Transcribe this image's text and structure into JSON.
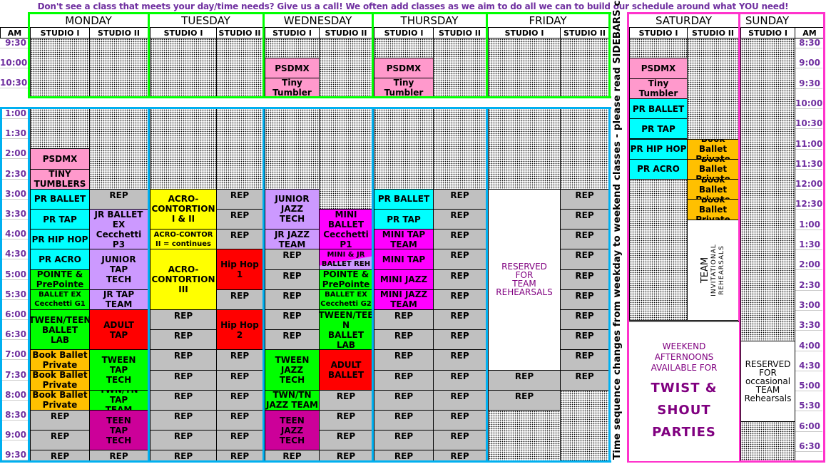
{
  "banner": "Don't see a class that meets your day/time needs? Give us a call! We often add classes as we aim to do all we can to build our schedule around what YOU need!",
  "sidebar_note": "Time sequence changes from weekday to weekend classes - please read SIDEBARS careful",
  "am_label": "AM",
  "colors": {
    "pink": "#ff99cc",
    "cyan": "#00ffff",
    "green": "#00ff00",
    "lavender": "#cc99ff",
    "yellow": "#ffff00",
    "red": "#ff0000",
    "orange": "#ffc000",
    "magenta": "#ff00ff",
    "purple": "#cc0099",
    "gray": "#c0c0c0",
    "white": "#ffffff",
    "weekday_am_frame": "#00ff00",
    "weekday_pm_frame": "#00b0f0",
    "weekend_frame": "#ff33cc",
    "time_text": "#7030a0",
    "reserved_text": "#800080"
  },
  "days": [
    {
      "name": "MONDAY",
      "studios": [
        "STUDIO I",
        "STUDIO II"
      ]
    },
    {
      "name": "TUESDAY",
      "studios": [
        "STUDIO I",
        "STUDIO II"
      ]
    },
    {
      "name": "WEDNESDAY",
      "studios": [
        "STUDIO I",
        "STUDIO II"
      ]
    },
    {
      "name": "THURSDAY",
      "studios": [
        "STUDIO I",
        "STUDIO II"
      ]
    },
    {
      "name": "FRIDAY",
      "studios": [
        "STUDIO I",
        "STUDIO II"
      ]
    },
    {
      "name": "SATURDAY",
      "studios": [
        "STUDIO I",
        "STUDIO II"
      ]
    },
    {
      "name": "SUNDAY",
      "studios": [
        "STUDIO I"
      ]
    }
  ],
  "weekday_am_times": [
    "9:30",
    "10:00",
    "10:30"
  ],
  "weekday_pm_times": [
    "1:00",
    "1:30",
    "2:00",
    "2:30",
    "3:00",
    "3:30",
    "4:00",
    "4:30",
    "5:00",
    "5:30",
    "6:00",
    "6:30",
    "7:00",
    "7:30",
    "8:00",
    "8:30",
    "9:00",
    "9:30"
  ],
  "weekend_times": [
    "8:30",
    "9:00",
    "9:30",
    "10:00",
    "10:30",
    "11:00",
    "11:30",
    "12:00",
    "12:30",
    "1:00",
    "1:30",
    "2:00",
    "2:30",
    "3:00",
    "3:30",
    "4:00",
    "4:30",
    "5:00",
    "5:30",
    "6:00",
    "6:30"
  ],
  "weekday_am": [
    [
      {
        "n": 3
      }
    ],
    [
      {
        "n": 3
      }
    ],
    [
      {
        "n": 3
      }
    ],
    [
      {
        "n": 3
      }
    ],
    [
      {
        "n": 1
      },
      {
        "label": "PSDMX",
        "color": "pink",
        "n": 1
      },
      {
        "label": "Tiny Tumbler",
        "color": "pink",
        "n": 1
      }
    ],
    [
      {
        "n": 3
      }
    ],
    [
      {
        "n": 1
      },
      {
        "label": "PSDMX",
        "color": "pink",
        "n": 1
      },
      {
        "label": "Tiny Tumbler",
        "color": "pink",
        "n": 1
      }
    ],
    [
      {
        "n": 3
      }
    ],
    [
      {
        "n": 3
      }
    ],
    [
      {
        "n": 3
      }
    ]
  ],
  "weekday_pm": [
    [
      {
        "n": 2
      },
      {
        "label": "PSDMX",
        "color": "pink",
        "n": 1
      },
      {
        "label": "TINY\nTUMBLERS",
        "color": "pink",
        "n": 1
      },
      {
        "label": "PR BALLET",
        "color": "cyan",
        "n": 1
      },
      {
        "label": "PR TAP",
        "color": "cyan",
        "n": 1
      },
      {
        "label": "PR HIP HOP",
        "color": "cyan",
        "n": 1
      },
      {
        "label": "PR ACRO",
        "color": "cyan",
        "n": 1
      },
      {
        "label": "POINTE &\nPrePointe",
        "color": "green",
        "n": 1
      },
      {
        "label": "BALLET EX\nCecchetti G1",
        "color": "green",
        "n": 1,
        "small": true
      },
      {
        "label": "TWEEN/TEEN\nBALLET\nLAB",
        "color": "green",
        "n": 2
      },
      {
        "label": "Book Ballet\nPrivate",
        "color": "orange",
        "n": 1
      },
      {
        "label": "Book Ballet\nPrivate",
        "color": "orange",
        "n": 1
      },
      {
        "label": "Book Ballet\nPrivate",
        "color": "orange",
        "n": 1
      },
      {
        "label": "REP",
        "color": "gray",
        "n": 1
      },
      {
        "label": "REP",
        "color": "gray",
        "n": 1
      },
      {
        "label": "REP",
        "color": "gray",
        "n": 1
      }
    ],
    [
      {
        "n": 4
      },
      {
        "label": "REP",
        "color": "gray",
        "n": 1
      },
      {
        "label": "JR BALLET\nEX\nCecchetti P3",
        "color": "lavender",
        "n": 2
      },
      {
        "label": "JUNIOR\nTAP\nTECH",
        "color": "lavender",
        "n": 2
      },
      {
        "label": "JR TAP\nTEAM",
        "color": "lavender",
        "n": 1
      },
      {
        "label": "ADULT\nTAP",
        "color": "red",
        "n": 2
      },
      {
        "label": "TWEEN\nTAP\nTECH",
        "color": "green",
        "n": 2
      },
      {
        "label": "TWN/TN TAP\nTEAM",
        "color": "green",
        "n": 1
      },
      {
        "label": "TEEN\nTAP\nTECH",
        "color": "purple",
        "n": 2
      },
      {
        "label": "REP",
        "color": "gray",
        "n": 1
      }
    ],
    [
      {
        "n": 4
      },
      {
        "label": "ACRO-\nCONTORTION\nI & II",
        "color": "yellow",
        "n": 2
      },
      {
        "label": "ACRO-CONTOR\nII = continues",
        "color": "yellow",
        "n": 1,
        "small": true
      },
      {
        "label": "ACRO-\nCONTORTION\nIII",
        "color": "yellow",
        "n": 3
      },
      {
        "label": "REP",
        "color": "gray",
        "n": 1
      },
      {
        "label": "REP",
        "color": "gray",
        "n": 1
      },
      {
        "label": "REP",
        "color": "gray",
        "n": 1
      },
      {
        "label": "REP",
        "color": "gray",
        "n": 1
      },
      {
        "label": "REP",
        "color": "gray",
        "n": 1
      },
      {
        "label": "REP",
        "color": "gray",
        "n": 1
      },
      {
        "label": "REP",
        "color": "gray",
        "n": 1
      },
      {
        "label": "REP",
        "color": "gray",
        "n": 1
      }
    ],
    [
      {
        "n": 4
      },
      {
        "label": "REP",
        "color": "gray",
        "n": 1
      },
      {
        "label": "REP",
        "color": "gray",
        "n": 1
      },
      {
        "label": "REP",
        "color": "gray",
        "n": 1
      },
      {
        "label": "Hip Hop 1",
        "color": "red",
        "n": 2
      },
      {
        "label": "REP",
        "color": "gray",
        "n": 1
      },
      {
        "label": "Hip Hop 2",
        "color": "red",
        "n": 2
      },
      {
        "label": "REP",
        "color": "gray",
        "n": 1
      },
      {
        "label": "REP",
        "color": "gray",
        "n": 1
      },
      {
        "label": "REP",
        "color": "gray",
        "n": 1
      },
      {
        "label": "REP",
        "color": "gray",
        "n": 1
      },
      {
        "label": "REP",
        "color": "gray",
        "n": 1
      },
      {
        "label": "REP",
        "color": "gray",
        "n": 1
      }
    ],
    [
      {
        "n": 4
      },
      {
        "label": "JUNIOR\nJAZZ\nTECH",
        "color": "lavender",
        "n": 2
      },
      {
        "label": "JR JAZZ\nTEAM",
        "color": "lavender",
        "n": 1
      },
      {
        "label": "REP",
        "color": "gray",
        "n": 1
      },
      {
        "label": "REP",
        "color": "gray",
        "n": 1
      },
      {
        "label": "REP",
        "color": "gray",
        "n": 1
      },
      {
        "label": "REP",
        "color": "gray",
        "n": 1
      },
      {
        "label": "REP",
        "color": "gray",
        "n": 1
      },
      {
        "label": "TWEEN\nJAZZ\nTECH",
        "color": "green",
        "n": 2
      },
      {
        "label": "TWN/TN\nJAZZ TEAM",
        "color": "green",
        "n": 1
      },
      {
        "label": "TEEN\nJAZZ\nTECH",
        "color": "purple",
        "n": 2
      },
      {
        "label": "REP",
        "color": "gray",
        "n": 1
      }
    ],
    [
      {
        "n": 5
      },
      {
        "label": "MINI\nBALLET\nCecchetti\nP1",
        "color": "magenta",
        "n": 2
      },
      {
        "label": "MINI & JR\nBALLET REH",
        "color": "split",
        "n": 1,
        "small": true
      },
      {
        "label": "POINTE &\nPrePointe",
        "color": "green",
        "n": 1
      },
      {
        "label": "BALLET EX\nCecchetti G2",
        "color": "green",
        "n": 1,
        "small": true
      },
      {
        "label": "TWEEN/TEE\nN\nBALLET\nLAB",
        "color": "green",
        "n": 2
      },
      {
        "label": "ADULT\nBALLET",
        "color": "red",
        "n": 2
      },
      {
        "label": "REP",
        "color": "gray",
        "n": 1
      },
      {
        "label": "REP",
        "color": "gray",
        "n": 1
      },
      {
        "label": "REP",
        "color": "gray",
        "n": 1
      },
      {
        "label": "REP",
        "color": "gray",
        "n": 1
      }
    ],
    [
      {
        "n": 4
      },
      {
        "label": "PR BALLET",
        "color": "cyan",
        "n": 1
      },
      {
        "label": "PR TAP",
        "color": "cyan",
        "n": 1
      },
      {
        "label": "MINI TAP\nTEAM",
        "color": "magenta",
        "n": 1
      },
      {
        "label": "MINI TAP",
        "color": "magenta",
        "n": 1
      },
      {
        "label": "MINI JAZZ",
        "color": "magenta",
        "n": 1
      },
      {
        "label": "MINI JAZZ\nTEAM",
        "color": "magenta",
        "n": 1
      },
      {
        "label": "REP",
        "color": "gray",
        "n": 1
      },
      {
        "label": "REP",
        "color": "gray",
        "n": 1
      },
      {
        "label": "REP",
        "color": "gray",
        "n": 1
      },
      {
        "label": "REP",
        "color": "gray",
        "n": 1
      },
      {
        "label": "REP",
        "color": "gray",
        "n": 1
      },
      {
        "label": "REP",
        "color": "gray",
        "n": 1
      },
      {
        "label": "REP",
        "color": "gray",
        "n": 1
      },
      {
        "label": "REP",
        "color": "gray",
        "n": 1
      }
    ],
    [
      {
        "n": 4
      },
      {
        "label": "REP",
        "color": "gray",
        "n": 1
      },
      {
        "label": "REP",
        "color": "gray",
        "n": 1
      },
      {
        "label": "REP",
        "color": "gray",
        "n": 1
      },
      {
        "label": "REP",
        "color": "gray",
        "n": 1
      },
      {
        "label": "REP",
        "color": "gray",
        "n": 1
      },
      {
        "label": "REP",
        "color": "gray",
        "n": 1
      },
      {
        "label": "REP",
        "color": "gray",
        "n": 1
      },
      {
        "label": "REP",
        "color": "gray",
        "n": 1
      },
      {
        "label": "REP",
        "color": "gray",
        "n": 1
      },
      {
        "label": "REP",
        "color": "gray",
        "n": 1
      },
      {
        "label": "REP",
        "color": "gray",
        "n": 1
      },
      {
        "label": "REP",
        "color": "gray",
        "n": 1
      },
      {
        "label": "REP",
        "color": "gray",
        "n": 1
      },
      {
        "label": "REP",
        "color": "gray",
        "n": 1
      }
    ],
    [
      {
        "n": 4
      },
      {
        "label": "RESERVED\nFOR\nTEAM\nREHEARSALS",
        "color": "white",
        "n": 9,
        "reserved": true
      },
      {
        "label": "REP",
        "color": "gray",
        "n": 1
      },
      {
        "label": "REP",
        "color": "gray",
        "n": 1
      },
      {
        "n": 3
      }
    ],
    [
      {
        "n": 4
      },
      {
        "label": "REP",
        "color": "gray",
        "n": 1
      },
      {
        "label": "REP",
        "color": "gray",
        "n": 1
      },
      {
        "label": "REP",
        "color": "gray",
        "n": 1
      },
      {
        "label": "REP",
        "color": "gray",
        "n": 1
      },
      {
        "label": "REP",
        "color": "gray",
        "n": 1
      },
      {
        "label": "REP",
        "color": "gray",
        "n": 1
      },
      {
        "label": "REP",
        "color": "gray",
        "n": 1
      },
      {
        "label": "REP",
        "color": "gray",
        "n": 1
      },
      {
        "label": "REP",
        "color": "gray",
        "n": 1
      },
      {
        "label": "REP",
        "color": "gray",
        "n": 1
      },
      {
        "n": 4
      }
    ]
  ],
  "weekend": [
    [
      {
        "n": 1
      },
      {
        "label": "PSDMX",
        "color": "pink",
        "n": 1
      },
      {
        "label": "Tiny Tumbler",
        "color": "pink",
        "n": 1
      },
      {
        "label": "PR BALLET",
        "color": "cyan",
        "n": 1
      },
      {
        "label": "PR TAP",
        "color": "cyan",
        "n": 1
      },
      {
        "label": "PR HIP HOP",
        "color": "cyan",
        "n": 1
      },
      {
        "label": "PR ACRO",
        "color": "cyan",
        "n": 1
      },
      {
        "n": 7
      }
    ],
    [
      {
        "n": 5
      },
      {
        "label": "Book Ballet\nPrivate",
        "color": "orange",
        "n": 1
      },
      {
        "label": "Book Ballet\nPrivate",
        "color": "orange",
        "n": 1
      },
      {
        "label": "Book Ballet\nPrivate",
        "color": "orange",
        "n": 1
      },
      {
        "label": "Book Ballet\nPrivate",
        "color": "orange",
        "n": 1
      },
      {
        "n": 5,
        "color": "white",
        "team": true
      }
    ],
    [
      {
        "n": 15
      },
      {
        "label": "RESERVED\nFOR\noccasional\nTEAM\nRehearsals",
        "color": "white",
        "n": 4
      },
      {
        "n": 2
      }
    ]
  ],
  "team_invitational": {
    "title": "TEAM",
    "subtitle": "INVITATIONAL\nREHEARSALS"
  },
  "weekend_party": {
    "intro": "WEEKEND\nAFTERNOONS\nAVAILABLE FOR",
    "lines": [
      "TWIST &",
      "SHOUT",
      "PARTIES"
    ]
  }
}
